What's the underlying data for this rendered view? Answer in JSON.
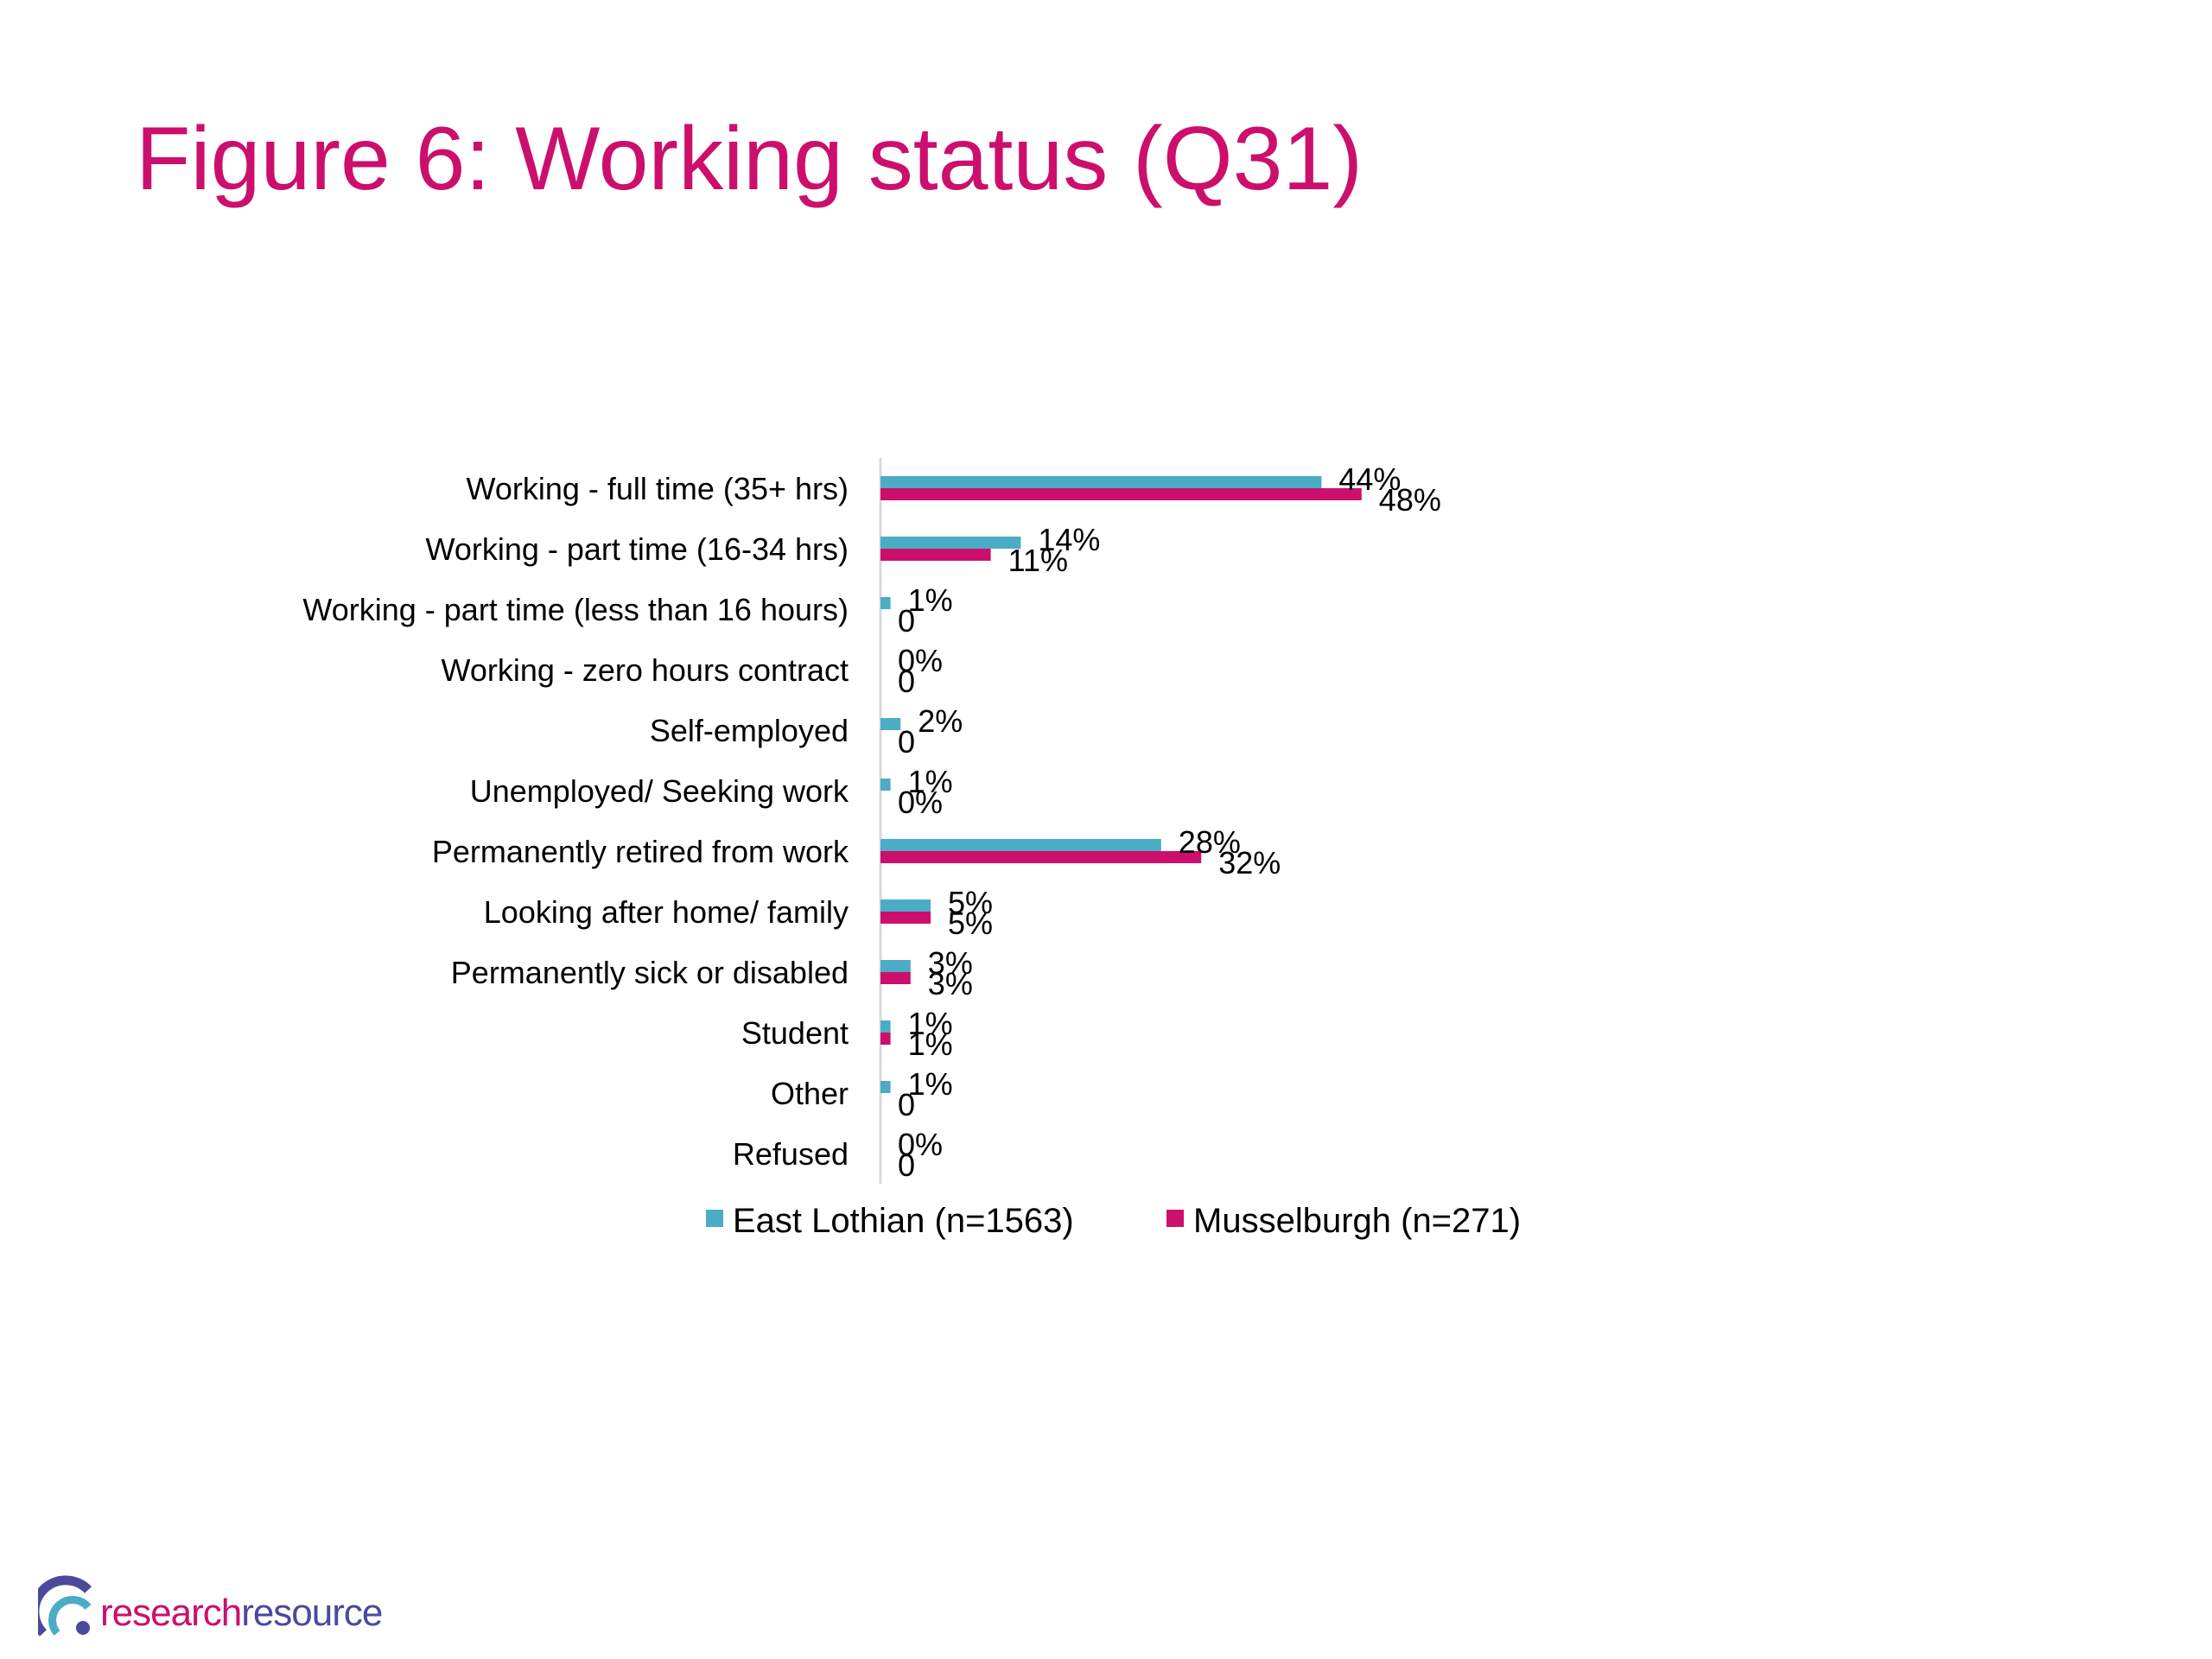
{
  "title": "Figure 6: Working status (Q31)",
  "colors": {
    "title": "#cc0f6c",
    "east_lothian": "#4bacc6",
    "musselburgh": "#cc0f6c"
  },
  "logo": {
    "word_1": "research",
    "word_2": "resource"
  },
  "chart_data": {
    "type": "bar",
    "orientation": "horizontal",
    "categories": [
      "Working - full time (35+ hrs)",
      "Working - part time (16-34 hrs)",
      "Working - part time (less than 16 hours)",
      "Working - zero hours contract",
      "Self-employed",
      "Unemployed/ Seeking work",
      "Permanently retired from work",
      "Looking after home/ family",
      "Permanently sick or disabled",
      "Student",
      "Other",
      "Refused"
    ],
    "series": [
      {
        "name": "East Lothian (n=1563)",
        "color": "#4bacc6",
        "values": [
          44,
          14,
          1,
          0,
          2,
          1,
          28,
          5,
          3,
          1,
          1,
          0
        ],
        "labels": [
          "44%",
          "14%",
          "1%",
          "0%",
          "2%",
          "1%",
          "28%",
          "5%",
          "3%",
          "1%",
          "1%",
          "0%"
        ]
      },
      {
        "name": "Musselburgh (n=271)",
        "color": "#cc0f6c",
        "values": [
          48,
          11,
          0,
          0,
          0,
          0,
          32,
          5,
          3,
          1,
          0,
          0
        ],
        "labels": [
          "48%",
          "11%",
          "0",
          "0",
          "0",
          "0%",
          "32%",
          "5%",
          "3%",
          "1%",
          "0",
          "0"
        ]
      }
    ],
    "legend_position": "bottom",
    "grid": false,
    "xlim": [
      0,
      100
    ]
  }
}
